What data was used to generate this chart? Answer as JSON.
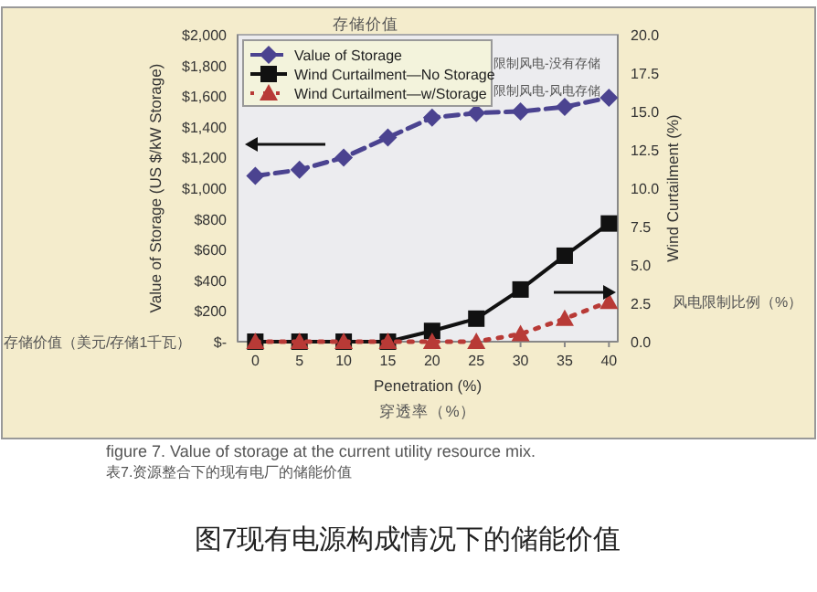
{
  "chart_data": {
    "type": "line",
    "xlabel": "Penetration (%)",
    "ylabel": "Value of Storage (US $/kW Storage)",
    "y2label": "Wind Curtailment (%)",
    "x": [
      0,
      5,
      10,
      15,
      20,
      25,
      30,
      35,
      40
    ],
    "xlim": [
      -2,
      41
    ],
    "xticks": [
      0,
      5,
      10,
      15,
      20,
      25,
      30,
      35,
      40
    ],
    "ylim": [
      0,
      2000
    ],
    "yticks": [
      {
        "value": 0,
        "label": "$-"
      },
      {
        "value": 200,
        "label": "$200"
      },
      {
        "value": 400,
        "label": "$400"
      },
      {
        "value": 600,
        "label": "$600"
      },
      {
        "value": 800,
        "label": "$800"
      },
      {
        "value": 1000,
        "label": "$1,000"
      },
      {
        "value": 1200,
        "label": "$1,200"
      },
      {
        "value": 1400,
        "label": "$1,400"
      },
      {
        "value": 1600,
        "label": "$1,600"
      },
      {
        "value": 1800,
        "label": "$1,800"
      },
      {
        "value": 2000,
        "label": "$2,000"
      }
    ],
    "y2lim": [
      0,
      20
    ],
    "y2ticks": [
      {
        "value": 0,
        "label": "0.0"
      },
      {
        "value": 2.5,
        "label": "2.5"
      },
      {
        "value": 5,
        "label": "5.0"
      },
      {
        "value": 7.5,
        "label": "7.5"
      },
      {
        "value": 10,
        "label": "10.0"
      },
      {
        "value": 12.5,
        "label": "12.5"
      },
      {
        "value": 15,
        "label": "15.0"
      },
      {
        "value": 17.5,
        "label": "17.5"
      },
      {
        "value": 20,
        "label": "20.0"
      }
    ],
    "series": [
      {
        "name": "Value of Storage",
        "color": "#4b4390",
        "marker": "diamond",
        "line_style": "dashed",
        "values": [
          1080,
          1120,
          1200,
          1330,
          1460,
          1490,
          1500,
          1530,
          1590
        ]
      },
      {
        "name": "Wind Curtailment—No Storage",
        "color": "#111111",
        "marker": "square",
        "line_style": "solid",
        "axis": "y2",
        "values": [
          0,
          0,
          0,
          0,
          0.7,
          1.5,
          3.4,
          5.6,
          7.7
        ]
      },
      {
        "name": "Wind Curtailment—w/Storage",
        "color": "#b83a36",
        "marker": "triangle",
        "line_style": "dotted",
        "axis": "y2",
        "values": [
          0,
          0,
          0,
          0,
          0,
          0,
          0.5,
          1.5,
          2.6
        ]
      }
    ],
    "legend": "top left",
    "grid": false,
    "annotations": [
      "存储价值",
      "限制风电-没有存储",
      "限制风电-风电存储",
      "风电限制比例（%）",
      "存储价值（美元/存储1千瓦）",
      "穿透率（%）",
      "figure 7. Value of storage at the current utility resource mix.",
      "表7.资源整合下的现有电厂的储能价值",
      "图7现有电源构成情况下的储能价值"
    ]
  }
}
